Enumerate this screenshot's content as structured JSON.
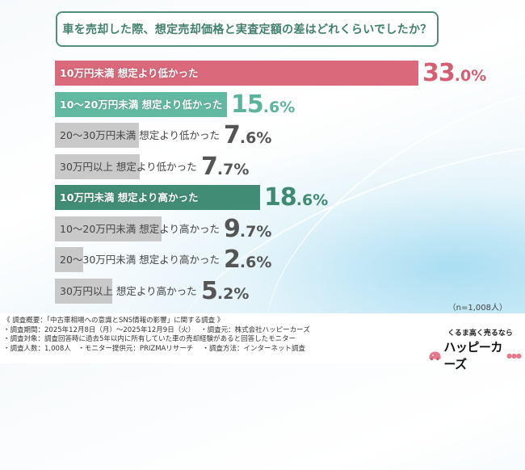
{
  "title": "車を売却した際、想定売却価格と実査定額の差はどれくらいでしたか？",
  "chart_data": {
    "type": "bar",
    "orientation": "horizontal",
    "title": "車を売却した際、想定売却価格と実査定額の差はどれくらいでしたか？",
    "unit": "%",
    "xlim": [
      0,
      33.0
    ],
    "categories": [
      "10万円未満 想定より低かった",
      "10～20万円未満 想定より低かった",
      "20～30万円未満 想定より低かった",
      "30万円以上 想定より低かった",
      "10万円未満 想定より高かった",
      "10～20万円未満 想定より高かった",
      "20～30万円未満 想定より高かった",
      "30万円以上 想定より高かった"
    ],
    "values": [
      33.0,
      15.6,
      7.6,
      7.7,
      18.6,
      9.7,
      2.6,
      5.2
    ],
    "value_labels": [
      {
        "int": "33",
        "dec": ".0%"
      },
      {
        "int": "15",
        "dec": ".6%"
      },
      {
        "int": "7",
        "dec": ".6%"
      },
      {
        "int": "7",
        "dec": ".7%"
      },
      {
        "int": "18",
        "dec": ".6%"
      },
      {
        "int": "9",
        "dec": ".7%"
      },
      {
        "int": "2",
        "dec": ".6%"
      },
      {
        "int": "5",
        "dec": ".2%"
      }
    ],
    "bar_colors": [
      "#d9697b",
      "#62b9a1",
      "#c9c9c9",
      "#c9c9c9",
      "#408c74",
      "#c9c9c9",
      "#c9c9c9",
      "#c9c9c9"
    ],
    "value_colors": [
      "#d45f73",
      "#5ab59c",
      "#555555",
      "#555555",
      "#3f8a72",
      "#555555",
      "#555555",
      "#555555"
    ],
    "label_styles": [
      "light",
      "light",
      "dark",
      "dark",
      "light",
      "dark",
      "dark",
      "dark"
    ]
  },
  "sample_note": "（n=1,008人）",
  "notes": [
    "《 調査概要：「中古車相場への意識とSNS情報の影響」に関する調査 》",
    "・調査期間：2025年12月8日（月）～2025年12月9日（火）　 ・調査元：株式会社ハッピーカーズ",
    "・調査対象：調査回答時に過去5年以内に所有していた車の売却経験があると回答したモニター",
    "・調査人数：1,008人　・モニター提供元：PRIZMAリサーチ　 ・調査方法：インターネット調査"
  ],
  "logo": {
    "tagline": "くるま高く売るなら",
    "name": "ハッピーカーズ"
  }
}
